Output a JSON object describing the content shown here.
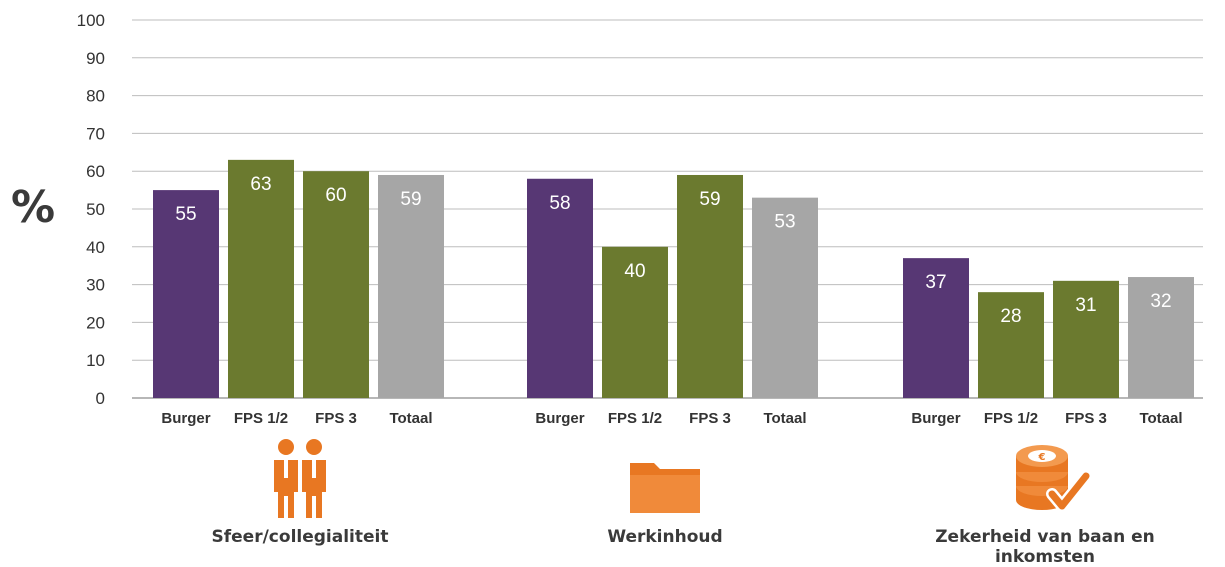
{
  "chart_data": {
    "type": "bar",
    "y_unit_label": "%",
    "ylim": [
      0,
      100
    ],
    "yticks": [
      0,
      10,
      20,
      30,
      40,
      50,
      60,
      70,
      80,
      90,
      100
    ],
    "grid": true,
    "series_names": [
      "Burger",
      "FPS 1/2",
      "FPS 3",
      "Totaal"
    ],
    "colors": {
      "Burger": "#573774",
      "FPS 1/2": "#6b7a2f",
      "FPS 3": "#6b7a2f",
      "Totaal": "#a6a6a6"
    },
    "groups": [
      {
        "name": "Sfeer/collegialiteit",
        "icon": "people-icon",
        "values": [
          55,
          63,
          60,
          59
        ]
      },
      {
        "name": "Werkinhoud",
        "icon": "folder-icon",
        "values": [
          58,
          40,
          59,
          53
        ]
      },
      {
        "name": "Zekerheid van baan en inkomsten",
        "icon": "coins-check-icon",
        "values": [
          37,
          28,
          31,
          32
        ]
      }
    ]
  },
  "icon_color": "#e87722"
}
